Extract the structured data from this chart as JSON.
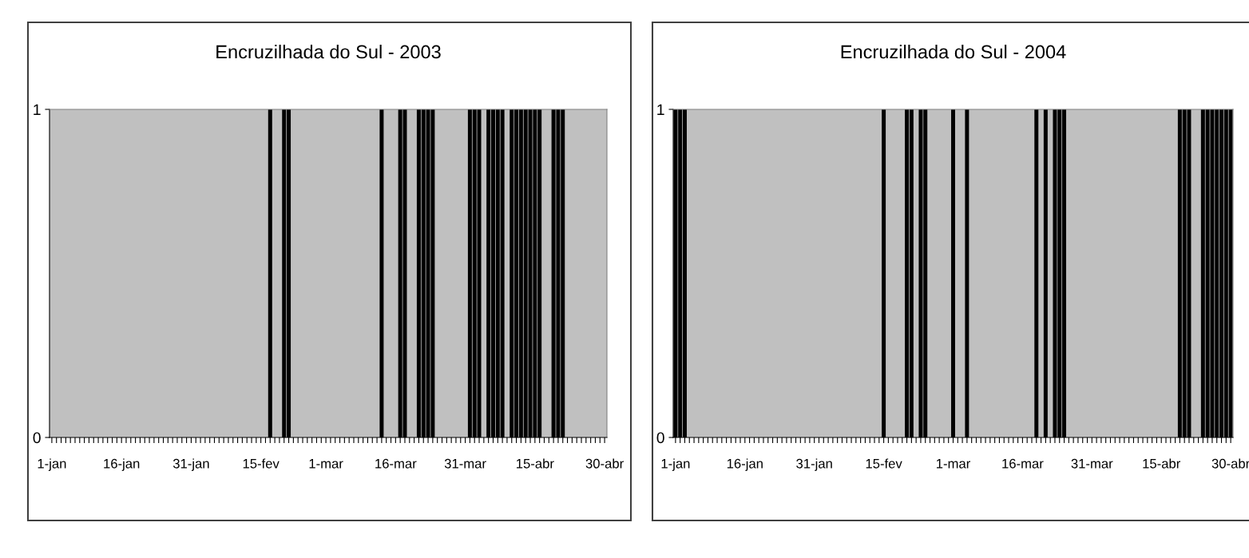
{
  "chart_data": [
    {
      "type": "bar",
      "title": "Encruzilhada do Sul - 2003",
      "categories": [
        "1-jan",
        null,
        null,
        null,
        null,
        null,
        null,
        null,
        null,
        null,
        null,
        null,
        null,
        null,
        null,
        "16-jan",
        null,
        null,
        null,
        null,
        null,
        null,
        null,
        null,
        null,
        null,
        null,
        null,
        null,
        null,
        "31-jan",
        null,
        null,
        null,
        null,
        null,
        null,
        null,
        null,
        null,
        null,
        null,
        null,
        null,
        null,
        "15-fev",
        null,
        null,
        null,
        null,
        null,
        null,
        null,
        null,
        null,
        null,
        null,
        null,
        null,
        "1-mar",
        null,
        null,
        null,
        null,
        null,
        null,
        null,
        null,
        null,
        null,
        null,
        null,
        null,
        null,
        "16-mar",
        null,
        null,
        null,
        null,
        null,
        null,
        null,
        null,
        null,
        null,
        null,
        null,
        null,
        null,
        "31-mar",
        null,
        null,
        null,
        null,
        null,
        null,
        null,
        null,
        null,
        null,
        null,
        null,
        null,
        null,
        "15-abr",
        null,
        null,
        null,
        null,
        null,
        null,
        null,
        null,
        null,
        null,
        null,
        null,
        null,
        null,
        "30-abr"
      ],
      "series": [
        {
          "color": "#000000",
          "values": [
            0,
            0,
            0,
            0,
            0,
            0,
            0,
            0,
            0,
            0,
            0,
            0,
            0,
            0,
            0,
            0,
            0,
            0,
            0,
            0,
            0,
            0,
            0,
            0,
            0,
            0,
            0,
            0,
            0,
            0,
            0,
            0,
            0,
            0,
            0,
            0,
            0,
            0,
            0,
            0,
            0,
            0,
            0,
            0,
            0,
            0,
            0,
            1,
            0,
            0,
            1,
            1,
            0,
            0,
            0,
            0,
            0,
            0,
            0,
            0,
            0,
            0,
            0,
            0,
            0,
            0,
            0,
            0,
            0,
            0,
            0,
            1,
            0,
            0,
            0,
            1,
            1,
            0,
            0,
            1,
            1,
            1,
            1,
            0,
            0,
            0,
            0,
            0,
            0,
            0,
            1,
            1,
            1,
            0,
            1,
            1,
            1,
            1,
            0,
            1,
            1,
            1,
            1,
            1,
            1,
            1,
            0,
            0,
            1,
            1,
            1,
            0,
            0,
            0,
            0,
            0,
            0,
            0,
            0,
            0
          ]
        }
      ],
      "ylim": [
        0,
        1
      ],
      "yticks": [
        0,
        1
      ],
      "grid": false
    },
    {
      "type": "bar",
      "title": "Encruzilhada do Sul - 2004",
      "categories": [
        "1-jan",
        null,
        null,
        null,
        null,
        null,
        null,
        null,
        null,
        null,
        null,
        null,
        null,
        null,
        null,
        "16-jan",
        null,
        null,
        null,
        null,
        null,
        null,
        null,
        null,
        null,
        null,
        null,
        null,
        null,
        null,
        "31-jan",
        null,
        null,
        null,
        null,
        null,
        null,
        null,
        null,
        null,
        null,
        null,
        null,
        null,
        null,
        "15-fev",
        null,
        null,
        null,
        null,
        null,
        null,
        null,
        null,
        null,
        null,
        null,
        null,
        null,
        null,
        "1-mar",
        null,
        null,
        null,
        null,
        null,
        null,
        null,
        null,
        null,
        null,
        null,
        null,
        null,
        null,
        "16-mar",
        null,
        null,
        null,
        null,
        null,
        null,
        null,
        null,
        null,
        null,
        null,
        null,
        null,
        null,
        "31-mar",
        null,
        null,
        null,
        null,
        null,
        null,
        null,
        null,
        null,
        null,
        null,
        null,
        null,
        null,
        "15-abr",
        null,
        null,
        null,
        null,
        null,
        null,
        null,
        null,
        null,
        null,
        null,
        null,
        null,
        null,
        "30-abr"
      ],
      "series": [
        {
          "color": "#000000",
          "values": [
            1,
            1,
            1,
            0,
            0,
            0,
            0,
            0,
            0,
            0,
            0,
            0,
            0,
            0,
            0,
            0,
            0,
            0,
            0,
            0,
            0,
            0,
            0,
            0,
            0,
            0,
            0,
            0,
            0,
            0,
            0,
            0,
            0,
            0,
            0,
            0,
            0,
            0,
            0,
            0,
            0,
            0,
            0,
            0,
            0,
            1,
            0,
            0,
            0,
            0,
            1,
            1,
            0,
            1,
            1,
            0,
            0,
            0,
            0,
            0,
            1,
            0,
            0,
            1,
            0,
            0,
            0,
            0,
            0,
            0,
            0,
            0,
            0,
            0,
            0,
            0,
            0,
            0,
            1,
            0,
            1,
            0,
            1,
            1,
            1,
            0,
            0,
            0,
            0,
            0,
            0,
            0,
            0,
            0,
            0,
            0,
            0,
            0,
            0,
            0,
            0,
            0,
            0,
            0,
            0,
            0,
            0,
            0,
            0,
            1,
            1,
            1,
            0,
            0,
            1,
            1,
            1,
            1,
            1,
            1,
            1
          ]
        }
      ],
      "ylim": [
        0,
        1
      ],
      "yticks": [
        0,
        1
      ],
      "grid": false
    }
  ]
}
